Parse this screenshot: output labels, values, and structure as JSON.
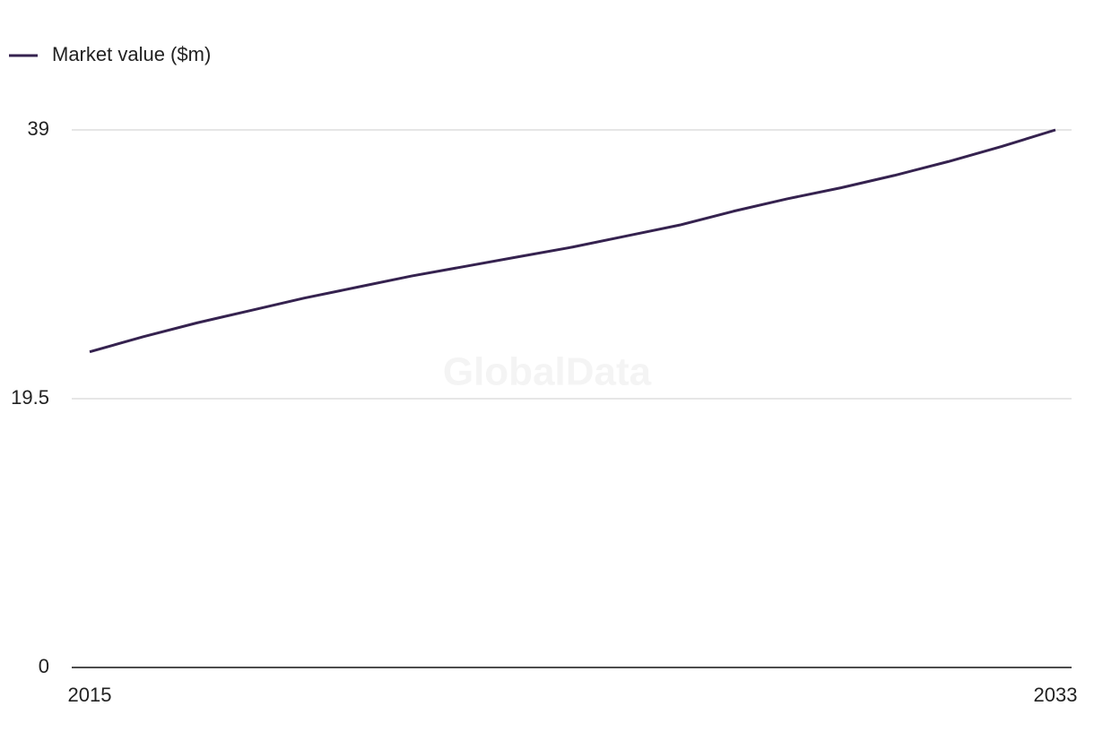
{
  "chart_data": {
    "type": "line",
    "watermark": "GlobalData",
    "x": [
      2015,
      2016,
      2017,
      2018,
      2019,
      2020,
      2021,
      2022,
      2023,
      2024,
      2025,
      2026,
      2027,
      2028,
      2029,
      2030,
      2031,
      2032,
      2033
    ],
    "series": [
      {
        "name": "Market value ($m)",
        "color": "#35224f",
        "values": [
          22.9,
          24.0,
          25.0,
          25.9,
          26.8,
          27.6,
          28.4,
          29.1,
          29.8,
          30.5,
          31.3,
          32.1,
          33.1,
          34.0,
          34.8,
          35.7,
          36.7,
          37.8,
          39.0
        ]
      }
    ],
    "xlim": [
      2015,
      2033
    ],
    "xticks": [
      2015,
      2033
    ],
    "ylim": [
      0,
      39
    ],
    "yticks": [
      0,
      19.5,
      39
    ],
    "grid": true,
    "legend": "top-left"
  }
}
